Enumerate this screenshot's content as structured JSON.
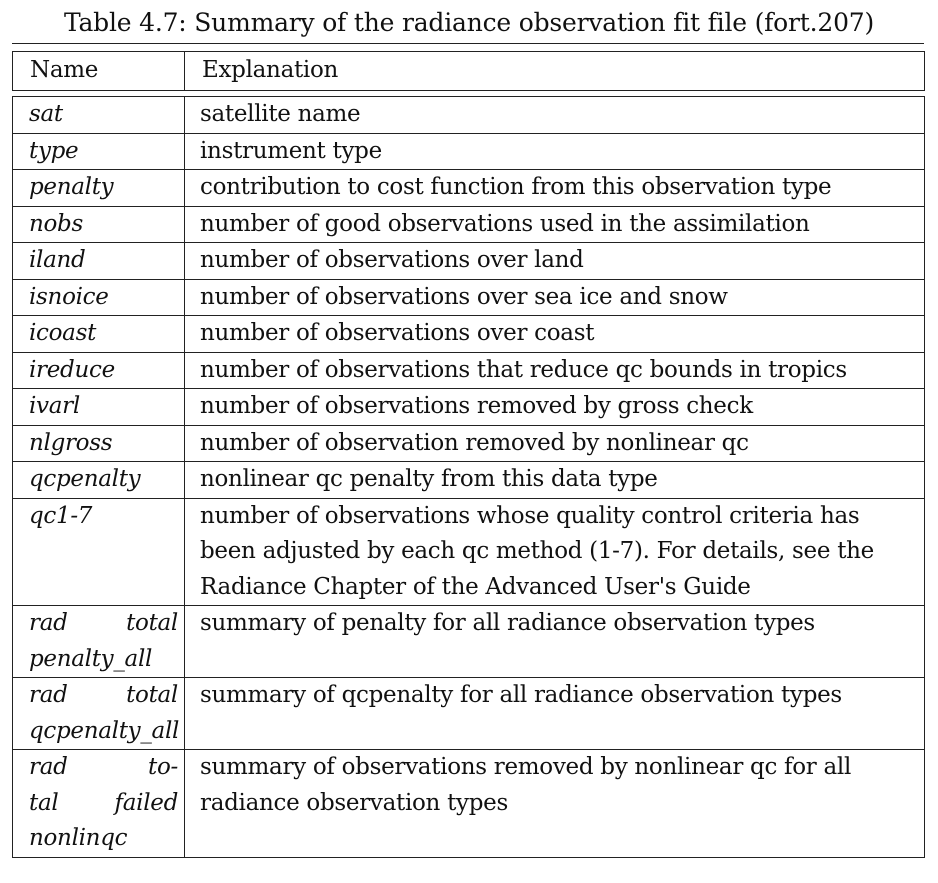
{
  "caption": "Table 4.7: Summary of the radiance observation fit file (fort.207)",
  "headers": {
    "name": "Name",
    "explanation": "Explanation"
  },
  "rows": [
    {
      "name": "sat",
      "explanation": "satellite name"
    },
    {
      "name": "type",
      "explanation": "instrument type"
    },
    {
      "name": "penalty",
      "explanation": "contribution to cost function from this observation type"
    },
    {
      "name": "nobs",
      "explanation": "number of good observations used in the assimilation"
    },
    {
      "name": "iland",
      "explanation": "number of observations over land"
    },
    {
      "name": "isnoice",
      "explanation": "number of observations over sea ice and snow"
    },
    {
      "name": "icoast",
      "explanation": "number of observations over coast"
    },
    {
      "name": "ireduce",
      "explanation": "number of observations that reduce qc bounds in tropics"
    },
    {
      "name": "ivarl",
      "explanation": "number of observations removed by gross check"
    },
    {
      "name": "nlgross",
      "explanation": "number of observation removed by nonlinear qc"
    },
    {
      "name": "qcpenalty",
      "explanation": "nonlinear qc penalty from this data type"
    },
    {
      "name": "qc1-7",
      "explanation": "number of observations whose quality control criteria has been adjusted by each qc method (1-7). For details, see the Radiance Chapter of the Advanced User's Guide"
    },
    {
      "name_lines": [
        "rad total",
        "penalty_all"
      ],
      "explanation": "summary of penalty for all radiance observation types"
    },
    {
      "name_lines": [
        "rad total",
        "qcpenalty_all"
      ],
      "explanation": "summary of qcpenalty for all radiance observation types"
    },
    {
      "name_lines": [
        "rad to-",
        "tal failed",
        "nonlinqc"
      ],
      "explanation": "summary of observations removed by nonlinear qc for all radiance observation types"
    }
  ]
}
